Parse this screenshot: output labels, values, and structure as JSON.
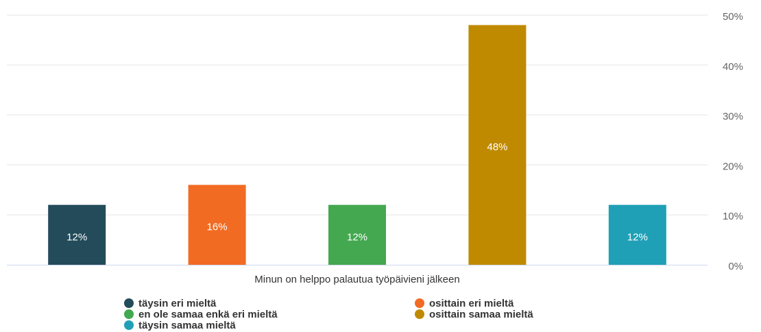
{
  "chart_data": {
    "type": "bar",
    "categories": [
      "Minun on helppo palautua työpäivieni jälkeen"
    ],
    "series": [
      {
        "name": "täysin eri mieltä",
        "color": "#234b5a",
        "values": [
          12
        ],
        "value_labels": [
          "12%"
        ]
      },
      {
        "name": "osittain eri mieltä",
        "color": "#f26b22",
        "values": [
          16
        ],
        "value_labels": [
          "16%"
        ]
      },
      {
        "name": "en ole samaa enkä eri mieltä",
        "color": "#43a84f",
        "values": [
          12
        ],
        "value_labels": [
          "12%"
        ]
      },
      {
        "name": "osittain samaa mieltä",
        "color": "#c08a00",
        "values": [
          48
        ],
        "value_labels": [
          "48%"
        ]
      },
      {
        "name": "täysin samaa mieltä",
        "color": "#20a0b6",
        "values": [
          12
        ],
        "value_labels": [
          "12%"
        ]
      }
    ],
    "ylim": [
      0,
      50
    ],
    "yticks": [
      {
        "value": 0,
        "label": "0%"
      },
      {
        "value": 10,
        "label": "10%"
      },
      {
        "value": 20,
        "label": "20%"
      },
      {
        "value": 30,
        "label": "30%"
      },
      {
        "value": 40,
        "label": "40%"
      },
      {
        "value": 50,
        "label": "50%"
      }
    ],
    "grid": true
  }
}
